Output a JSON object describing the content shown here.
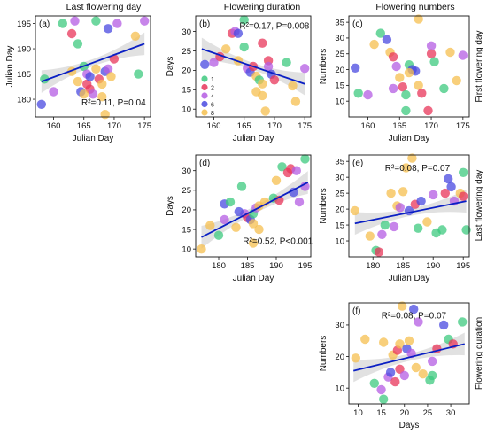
{
  "column_titles": [
    "Last flowering day",
    "Flowering duration",
    "Flowering numbers"
  ],
  "row_labels": [
    "First flowering day",
    "Last flowering day",
    "Flowering duration"
  ],
  "colors": {
    "g1": "#3ec97f",
    "g2": "#e8365a",
    "g4": "#b45ce3",
    "g6": "#4a4ae0",
    "g8": "#f5bf4f",
    "fit": "#0a1fc4",
    "band": "#c9c9c9"
  },
  "legend": {
    "items": [
      {
        "label": "1",
        "color": "g1"
      },
      {
        "label": "2",
        "color": "g2"
      },
      {
        "label": "4",
        "color": "g4"
      },
      {
        "label": "6",
        "color": "g6"
      },
      {
        "label": "8",
        "color": "g8"
      }
    ]
  },
  "chart_data": [
    {
      "panel": "(a)",
      "type": "scatter",
      "xlabel": "Julian Day",
      "ylabel": "Julian Day",
      "xlim": [
        157,
        176
      ],
      "ylim": [
        176.5,
        196.5
      ],
      "xticks": [
        160,
        165,
        170,
        175
      ],
      "yticks": [
        180,
        185,
        190,
        195
      ],
      "stats_text": "R²=0.11, P=0.04",
      "fit": {
        "x": [
          158,
          175
        ],
        "y": [
          183.5,
          191
        ]
      },
      "points": [
        {
          "x": 158.5,
          "y": 184.0,
          "g": "g1"
        },
        {
          "x": 158.0,
          "y": 179.0,
          "g": "g6"
        },
        {
          "x": 160.0,
          "y": 181.5,
          "g": "g4"
        },
        {
          "x": 161.5,
          "y": 195.0,
          "g": "g1"
        },
        {
          "x": 163.0,
          "y": 193.0,
          "g": "g2"
        },
        {
          "x": 163.5,
          "y": 195.5,
          "g": "g4"
        },
        {
          "x": 164.0,
          "y": 191.0,
          "g": "g1"
        },
        {
          "x": 164.5,
          "y": 181.5,
          "g": "g6"
        },
        {
          "x": 164.0,
          "y": 183.5,
          "g": "g8"
        },
        {
          "x": 165.0,
          "y": 186.5,
          "g": "g1"
        },
        {
          "x": 165.5,
          "y": 185.0,
          "g": "g4"
        },
        {
          "x": 165.5,
          "y": 183.0,
          "g": "g2"
        },
        {
          "x": 166.0,
          "y": 184.5,
          "g": "g6"
        },
        {
          "x": 166.0,
          "y": 182.0,
          "g": "g2"
        },
        {
          "x": 166.5,
          "y": 181.0,
          "g": "g4"
        },
        {
          "x": 167.0,
          "y": 195.5,
          "g": "g1"
        },
        {
          "x": 167.0,
          "y": 186.0,
          "g": "g8"
        },
        {
          "x": 167.5,
          "y": 184.0,
          "g": "g2"
        },
        {
          "x": 168.0,
          "y": 183.0,
          "g": "g8"
        },
        {
          "x": 168.0,
          "y": 180.5,
          "g": "g8"
        },
        {
          "x": 168.5,
          "y": 185.5,
          "g": "g6"
        },
        {
          "x": 168.5,
          "y": 177.0,
          "g": "g8"
        },
        {
          "x": 169.0,
          "y": 194.0,
          "g": "g6"
        },
        {
          "x": 169.0,
          "y": 186.0,
          "g": "g4"
        },
        {
          "x": 169.5,
          "y": 184.5,
          "g": "g8"
        },
        {
          "x": 170.0,
          "y": 188.0,
          "g": "g2"
        },
        {
          "x": 170.5,
          "y": 195.0,
          "g": "g4"
        },
        {
          "x": 174.0,
          "y": 185.0,
          "g": "g1"
        },
        {
          "x": 175.0,
          "y": 195.5,
          "g": "g4"
        },
        {
          "x": 173.5,
          "y": 192.5,
          "g": "g8"
        },
        {
          "x": 165.0,
          "y": 181.0,
          "g": "g8"
        },
        {
          "x": 163.0,
          "y": 185.5,
          "g": "g8"
        }
      ]
    },
    {
      "panel": "(b)",
      "type": "scatter",
      "xlabel": "Julian Day",
      "ylabel": "Days",
      "xlim": [
        157,
        176
      ],
      "ylim": [
        8,
        34
      ],
      "xticks": [
        160,
        165,
        170,
        175
      ],
      "yticks": [
        10,
        15,
        20,
        25,
        30
      ],
      "stats_text": "R²=0.17, P=0.008",
      "fit": {
        "x": [
          158,
          175
        ],
        "y": [
          25.5,
          16.5
        ]
      },
      "points": [
        {
          "x": 158.5,
          "y": 21.5,
          "g": "g6"
        },
        {
          "x": 160.0,
          "y": 22.0,
          "g": "g4"
        },
        {
          "x": 161.0,
          "y": 23.5,
          "g": "g2"
        },
        {
          "x": 162.0,
          "y": 25.5,
          "g": "g8"
        },
        {
          "x": 163.0,
          "y": 29.5,
          "g": "g2"
        },
        {
          "x": 163.5,
          "y": 30.0,
          "g": "g4"
        },
        {
          "x": 164.0,
          "y": 29.5,
          "g": "g6"
        },
        {
          "x": 164.0,
          "y": 22.5,
          "g": "g8"
        },
        {
          "x": 165.0,
          "y": 26.0,
          "g": "g1"
        },
        {
          "x": 165.5,
          "y": 20.5,
          "g": "g4"
        },
        {
          "x": 166.0,
          "y": 19.5,
          "g": "g6"
        },
        {
          "x": 166.5,
          "y": 21.0,
          "g": "g2"
        },
        {
          "x": 167.0,
          "y": 18.5,
          "g": "g8"
        },
        {
          "x": 167.0,
          "y": 14.5,
          "g": "g8"
        },
        {
          "x": 167.5,
          "y": 17.5,
          "g": "g1"
        },
        {
          "x": 168.0,
          "y": 16.5,
          "g": "g8"
        },
        {
          "x": 168.0,
          "y": 13.5,
          "g": "g8"
        },
        {
          "x": 168.5,
          "y": 9.5,
          "g": "g8"
        },
        {
          "x": 169.0,
          "y": 22.5,
          "g": "g2"
        },
        {
          "x": 169.0,
          "y": 21.0,
          "g": "g4"
        },
        {
          "x": 169.5,
          "y": 19.0,
          "g": "g6"
        },
        {
          "x": 170.0,
          "y": 17.5,
          "g": "g2"
        },
        {
          "x": 172.0,
          "y": 22.0,
          "g": "g1"
        },
        {
          "x": 173.0,
          "y": 16.0,
          "g": "g8"
        },
        {
          "x": 173.5,
          "y": 12.0,
          "g": "g8"
        },
        {
          "x": 175.0,
          "y": 20.5,
          "g": "g4"
        },
        {
          "x": 165.0,
          "y": 33.0,
          "g": "g1"
        },
        {
          "x": 168.0,
          "y": 27.0,
          "g": "g2"
        }
      ],
      "legend_inset": true
    },
    {
      "panel": "(c)",
      "type": "scatter",
      "xlabel": "Julian Day",
      "ylabel": "Numbers",
      "xlim": [
        157,
        176
      ],
      "ylim": [
        5,
        37
      ],
      "xticks": [
        160,
        165,
        170,
        175
      ],
      "yticks": [
        10,
        15,
        20,
        25,
        30,
        35
      ],
      "stats_text": "",
      "fit": null,
      "points": [
        {
          "x": 158.0,
          "y": 20.5,
          "g": "g6"
        },
        {
          "x": 158.5,
          "y": 12.5,
          "g": "g1"
        },
        {
          "x": 160.0,
          "y": 12.0,
          "g": "g4"
        },
        {
          "x": 162.0,
          "y": 31.5,
          "g": "g1"
        },
        {
          "x": 163.0,
          "y": 29.5,
          "g": "g6"
        },
        {
          "x": 163.5,
          "y": 25.5,
          "g": "g8"
        },
        {
          "x": 164.0,
          "y": 24.0,
          "g": "g2"
        },
        {
          "x": 164.5,
          "y": 21.0,
          "g": "g4"
        },
        {
          "x": 165.0,
          "y": 17.5,
          "g": "g8"
        },
        {
          "x": 165.5,
          "y": 14.5,
          "g": "g2"
        },
        {
          "x": 166.0,
          "y": 12.0,
          "g": "g1"
        },
        {
          "x": 166.0,
          "y": 7.0,
          "g": "g1"
        },
        {
          "x": 166.5,
          "y": 21.5,
          "g": "g1"
        },
        {
          "x": 167.0,
          "y": 20.0,
          "g": "g6"
        },
        {
          "x": 167.5,
          "y": 19.5,
          "g": "g6"
        },
        {
          "x": 168.0,
          "y": 36.0,
          "g": "g8"
        },
        {
          "x": 168.0,
          "y": 15.0,
          "g": "g8"
        },
        {
          "x": 168.5,
          "y": 12.5,
          "g": "g2"
        },
        {
          "x": 169.5,
          "y": 7.0,
          "g": "g2"
        },
        {
          "x": 170.0,
          "y": 27.5,
          "g": "g4"
        },
        {
          "x": 170.0,
          "y": 25.0,
          "g": "g2"
        },
        {
          "x": 170.5,
          "y": 22.5,
          "g": "g1"
        },
        {
          "x": 172.0,
          "y": 14.0,
          "g": "g1"
        },
        {
          "x": 173.0,
          "y": 25.5,
          "g": "g8"
        },
        {
          "x": 174.0,
          "y": 16.5,
          "g": "g8"
        },
        {
          "x": 175.0,
          "y": 24.5,
          "g": "g4"
        },
        {
          "x": 164.0,
          "y": 14.0,
          "g": "g4"
        },
        {
          "x": 161.0,
          "y": 28.0,
          "g": "g8"
        },
        {
          "x": 166.5,
          "y": 19.0,
          "g": "g8"
        }
      ]
    },
    {
      "panel": "(d)",
      "type": "scatter",
      "xlabel": "Julian Day",
      "ylabel": "Days",
      "xlim": [
        176,
        196
      ],
      "ylim": [
        8,
        34
      ],
      "xticks": [
        180,
        185,
        190,
        195
      ],
      "yticks": [
        10,
        15,
        20,
        25,
        30
      ],
      "stats_text": "R²=0.52, P<0.001",
      "fit": {
        "x": [
          177,
          195.5
        ],
        "y": [
          13,
          27
        ]
      },
      "points": [
        {
          "x": 177.0,
          "y": 10.0,
          "g": "g8"
        },
        {
          "x": 178.5,
          "y": 16.0,
          "g": "g8"
        },
        {
          "x": 180.0,
          "y": 13.5,
          "g": "g1"
        },
        {
          "x": 181.0,
          "y": 17.5,
          "g": "g4"
        },
        {
          "x": 181.0,
          "y": 21.5,
          "g": "g6"
        },
        {
          "x": 182.0,
          "y": 22.0,
          "g": "g1"
        },
        {
          "x": 183.0,
          "y": 15.5,
          "g": "g8"
        },
        {
          "x": 184.0,
          "y": 26.0,
          "g": "g1"
        },
        {
          "x": 184.5,
          "y": 19.0,
          "g": "g4"
        },
        {
          "x": 185.0,
          "y": 18.0,
          "g": "g2"
        },
        {
          "x": 185.5,
          "y": 17.5,
          "g": "g6"
        },
        {
          "x": 186.0,
          "y": 16.5,
          "g": "g8"
        },
        {
          "x": 186.0,
          "y": 19.0,
          "g": "g1"
        },
        {
          "x": 186.5,
          "y": 20.5,
          "g": "g4"
        },
        {
          "x": 187.0,
          "y": 21.0,
          "g": "g8"
        },
        {
          "x": 187.0,
          "y": 15.0,
          "g": "g8"
        },
        {
          "x": 188.0,
          "y": 22.0,
          "g": "g8"
        },
        {
          "x": 189.5,
          "y": 23.0,
          "g": "g1"
        },
        {
          "x": 190.0,
          "y": 27.5,
          "g": "g8"
        },
        {
          "x": 190.5,
          "y": 22.5,
          "g": "g2"
        },
        {
          "x": 191.0,
          "y": 31.0,
          "g": "g1"
        },
        {
          "x": 192.0,
          "y": 29.5,
          "g": "g2"
        },
        {
          "x": 192.5,
          "y": 30.5,
          "g": "g2"
        },
        {
          "x": 193.0,
          "y": 24.5,
          "g": "g6"
        },
        {
          "x": 193.5,
          "y": 30.0,
          "g": "g4"
        },
        {
          "x": 194.0,
          "y": 22.0,
          "g": "g4"
        },
        {
          "x": 195.0,
          "y": 33.0,
          "g": "g1"
        },
        {
          "x": 195.0,
          "y": 26.0,
          "g": "g4"
        },
        {
          "x": 183.5,
          "y": 19.5,
          "g": "g6"
        },
        {
          "x": 186.0,
          "y": 11.5,
          "g": "g8"
        }
      ]
    },
    {
      "panel": "(e)",
      "type": "scatter",
      "xlabel": "Julian Day",
      "ylabel": "Numbers",
      "xlim": [
        176,
        196
      ],
      "ylim": [
        5,
        37
      ],
      "xticks": [
        180,
        185,
        190,
        195
      ],
      "yticks": [
        10,
        15,
        20,
        25,
        30,
        35
      ],
      "stats_text": "R²=0.08, P=0.07",
      "fit": {
        "x": [
          177,
          195.5
        ],
        "y": [
          15.5,
          22.5
        ]
      },
      "points": [
        {
          "x": 177.0,
          "y": 19.5,
          "g": "g8"
        },
        {
          "x": 179.5,
          "y": 11.5,
          "g": "g8"
        },
        {
          "x": 180.5,
          "y": 7.0,
          "g": "g1"
        },
        {
          "x": 181.0,
          "y": 6.5,
          "g": "g2"
        },
        {
          "x": 181.5,
          "y": 12.0,
          "g": "g4"
        },
        {
          "x": 182.0,
          "y": 15.0,
          "g": "g1"
        },
        {
          "x": 183.0,
          "y": 25.0,
          "g": "g8"
        },
        {
          "x": 183.5,
          "y": 14.5,
          "g": "g4"
        },
        {
          "x": 184.0,
          "y": 21.0,
          "g": "g8"
        },
        {
          "x": 184.5,
          "y": 20.5,
          "g": "g4"
        },
        {
          "x": 185.0,
          "y": 25.5,
          "g": "g8"
        },
        {
          "x": 185.5,
          "y": 33.0,
          "g": "g8"
        },
        {
          "x": 186.0,
          "y": 19.5,
          "g": "g6"
        },
        {
          "x": 186.5,
          "y": 36.0,
          "g": "g8"
        },
        {
          "x": 187.0,
          "y": 21.5,
          "g": "g2"
        },
        {
          "x": 187.5,
          "y": 14.0,
          "g": "g1"
        },
        {
          "x": 188.0,
          "y": 22.5,
          "g": "g6"
        },
        {
          "x": 189.0,
          "y": 16.0,
          "g": "g8"
        },
        {
          "x": 190.0,
          "y": 24.5,
          "g": "g4"
        },
        {
          "x": 190.5,
          "y": 12.5,
          "g": "g1"
        },
        {
          "x": 191.5,
          "y": 13.5,
          "g": "g1"
        },
        {
          "x": 192.0,
          "y": 25.0,
          "g": "g2"
        },
        {
          "x": 192.5,
          "y": 29.5,
          "g": "g6"
        },
        {
          "x": 193.0,
          "y": 27.0,
          "g": "g6"
        },
        {
          "x": 193.5,
          "y": 22.5,
          "g": "g4"
        },
        {
          "x": 194.5,
          "y": 25.0,
          "g": "g8"
        },
        {
          "x": 195.0,
          "y": 31.5,
          "g": "g1"
        },
        {
          "x": 195.0,
          "y": 24.0,
          "g": "g2"
        },
        {
          "x": 195.5,
          "y": 13.5,
          "g": "g1"
        }
      ]
    },
    {
      "panel": "(f)",
      "type": "scatter",
      "xlabel": "Days",
      "ylabel": "Numbers",
      "xlim": [
        8,
        34
      ],
      "ylim": [
        5,
        37
      ],
      "xticks": [
        10,
        15,
        20,
        25,
        30
      ],
      "yticks": [
        10,
        20,
        30
      ],
      "stats_text": "R²=0.08, P=0.07",
      "fit": {
        "x": [
          9,
          33
        ],
        "y": [
          15.5,
          24
        ]
      },
      "points": [
        {
          "x": 9.5,
          "y": 19.5,
          "g": "g8"
        },
        {
          "x": 11.5,
          "y": 25.5,
          "g": "g8"
        },
        {
          "x": 13.5,
          "y": 11.5,
          "g": "g1"
        },
        {
          "x": 15.0,
          "y": 9.5,
          "g": "g4"
        },
        {
          "x": 15.5,
          "y": 6.5,
          "g": "g1"
        },
        {
          "x": 15.5,
          "y": 24.5,
          "g": "g8"
        },
        {
          "x": 16.5,
          "y": 13.5,
          "g": "g4"
        },
        {
          "x": 17.0,
          "y": 15.0,
          "g": "g6"
        },
        {
          "x": 17.5,
          "y": 20.5,
          "g": "g8"
        },
        {
          "x": 18.0,
          "y": 12.0,
          "g": "g2"
        },
        {
          "x": 18.5,
          "y": 22.0,
          "g": "g2"
        },
        {
          "x": 19.0,
          "y": 24.0,
          "g": "g8"
        },
        {
          "x": 19.0,
          "y": 16.0,
          "g": "g2"
        },
        {
          "x": 19.5,
          "y": 36.0,
          "g": "g8"
        },
        {
          "x": 20.0,
          "y": 14.0,
          "g": "g4"
        },
        {
          "x": 20.5,
          "y": 22.5,
          "g": "g6"
        },
        {
          "x": 21.0,
          "y": 25.0,
          "g": "g8"
        },
        {
          "x": 21.5,
          "y": 21.0,
          "g": "g4"
        },
        {
          "x": 22.0,
          "y": 35.0,
          "g": "g6"
        },
        {
          "x": 22.5,
          "y": 16.5,
          "g": "g8"
        },
        {
          "x": 23.0,
          "y": 31.0,
          "g": "g4"
        },
        {
          "x": 24.0,
          "y": 14.5,
          "g": "g8"
        },
        {
          "x": 25.5,
          "y": 12.5,
          "g": "g1"
        },
        {
          "x": 26.0,
          "y": 14.0,
          "g": "g1"
        },
        {
          "x": 27.0,
          "y": 22.5,
          "g": "g2"
        },
        {
          "x": 28.5,
          "y": 30.0,
          "g": "g6"
        },
        {
          "x": 29.5,
          "y": 25.5,
          "g": "g1"
        },
        {
          "x": 30.5,
          "y": 24.0,
          "g": "g2"
        },
        {
          "x": 32.5,
          "y": 31.0,
          "g": "g1"
        },
        {
          "x": 26.0,
          "y": 18.5,
          "g": "g4"
        }
      ]
    }
  ]
}
